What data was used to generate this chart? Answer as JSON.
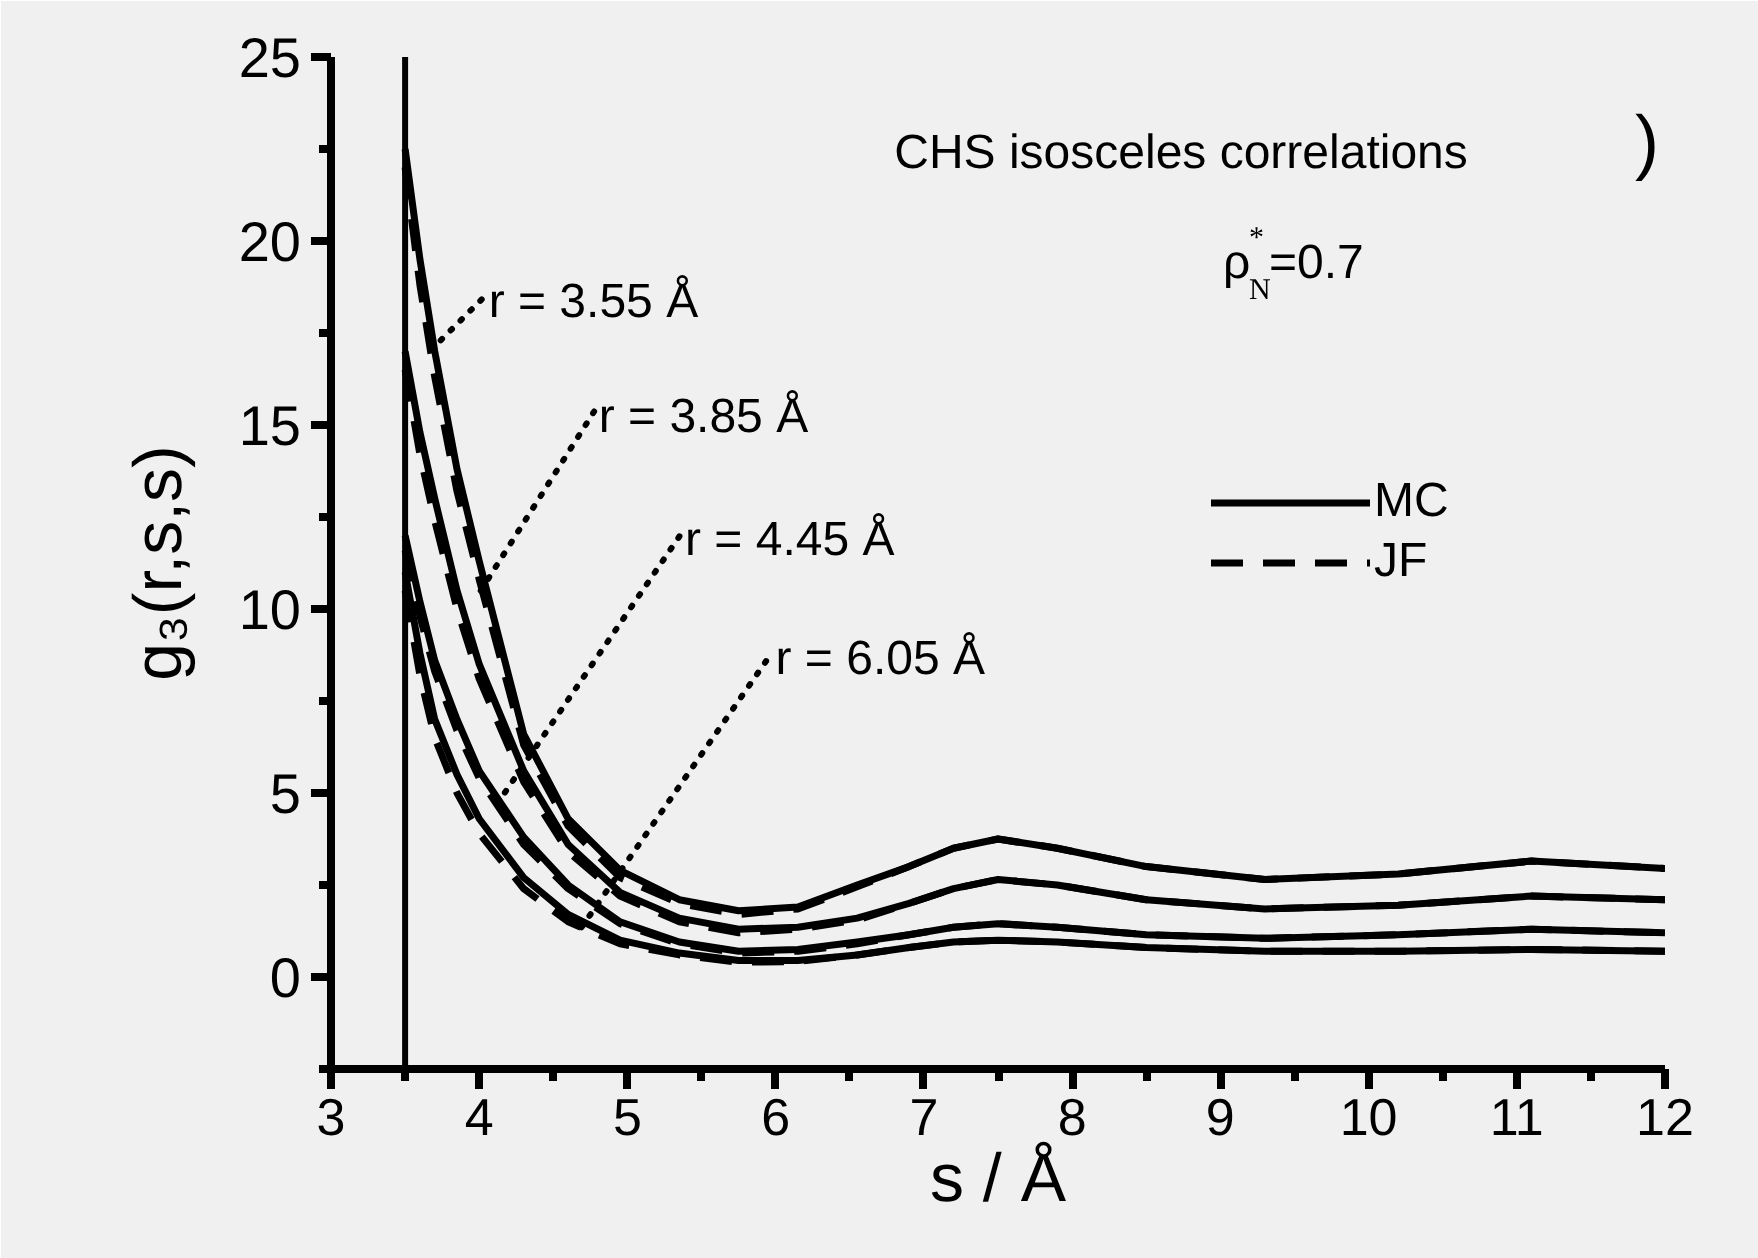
{
  "chart_data": {
    "type": "line",
    "xlabel": "s / Å",
    "ylabel": "g₃(r,s,s)",
    "xlim": [
      3,
      12
    ],
    "ylim": [
      -2.5,
      25
    ],
    "xticks": [
      3,
      4,
      5,
      6,
      7,
      8,
      9,
      10,
      11,
      12
    ],
    "yticks": [
      0,
      5,
      10,
      15,
      20,
      25
    ],
    "grid": false,
    "legend": "top right",
    "marker": "none",
    "x": [
      3.5,
      3.6,
      3.7,
      3.85,
      4.0,
      4.3,
      4.6,
      4.95,
      5.35,
      5.75,
      6.15,
      6.55,
      6.9,
      7.2,
      7.5,
      7.9,
      8.5,
      9.3,
      10.2,
      11.1,
      12.0
    ],
    "series": [
      {
        "name": "MC",
        "color": "#000000",
        "line_style": "solid",
        "values": [
          22.5,
          19.5,
          17.0,
          13.8,
          11.3,
          6.6,
          4.3,
          2.9,
          2.1,
          1.8,
          1.9,
          2.5,
          3.0,
          3.5,
          3.75,
          3.5,
          3.0,
          2.65,
          2.8,
          3.15,
          2.95
        ]
      },
      {
        "name": "JF",
        "color": "#000000",
        "line_style": "dashed",
        "values": [
          22.0,
          18.8,
          16.3,
          13.2,
          10.8,
          6.3,
          4.1,
          2.7,
          2.0,
          1.7,
          1.85,
          2.45,
          3.0,
          3.5,
          3.75,
          3.5,
          3.0,
          2.65,
          2.8,
          3.15,
          2.95
        ]
      },
      {
        "color": "#000000",
        "line_style": "solid",
        "values": [
          17.0,
          14.8,
          13.0,
          10.5,
          8.5,
          5.6,
          3.6,
          2.3,
          1.6,
          1.3,
          1.35,
          1.6,
          2.0,
          2.4,
          2.65,
          2.5,
          2.1,
          1.85,
          1.95,
          2.2,
          2.1
        ]
      },
      {
        "color": "#000000",
        "line_style": "dashed",
        "values": [
          16.5,
          14.2,
          12.4,
          10.0,
          8.1,
          5.3,
          3.4,
          2.2,
          1.5,
          1.2,
          1.3,
          1.55,
          2.0,
          2.4,
          2.65,
          2.5,
          2.1,
          1.85,
          1.95,
          2.2,
          2.1
        ]
      },
      {
        "color": "#000000",
        "line_style": "solid",
        "values": [
          12.0,
          10.2,
          8.6,
          7.0,
          5.6,
          3.8,
          2.5,
          1.5,
          0.95,
          0.7,
          0.75,
          0.95,
          1.15,
          1.35,
          1.45,
          1.35,
          1.15,
          1.05,
          1.15,
          1.3,
          1.2
        ]
      },
      {
        "color": "#000000",
        "line_style": "dashed",
        "values": [
          11.6,
          9.8,
          8.3,
          6.7,
          5.4,
          3.6,
          2.4,
          1.45,
          0.9,
          0.65,
          0.7,
          0.9,
          1.15,
          1.35,
          1.45,
          1.35,
          1.15,
          1.05,
          1.15,
          1.3,
          1.2
        ]
      },
      {
        "color": "#000000",
        "line_style": "solid",
        "values": [
          11.0,
          8.8,
          7.0,
          5.5,
          4.3,
          2.7,
          1.7,
          1.0,
          0.65,
          0.45,
          0.45,
          0.6,
          0.8,
          0.95,
          1.0,
          0.95,
          0.8,
          0.7,
          0.7,
          0.75,
          0.7
        ]
      },
      {
        "color": "#000000",
        "line_style": "dashed",
        "values": [
          10.5,
          8.2,
          6.5,
          5.0,
          3.9,
          2.4,
          1.5,
          0.9,
          0.6,
          0.4,
          0.42,
          0.6,
          0.8,
          0.95,
          1.0,
          0.95,
          0.8,
          0.7,
          0.7,
          0.75,
          0.7
        ]
      }
    ],
    "ref_lines": [
      {
        "axis": "x",
        "value": 3.5,
        "color": "#000000",
        "line_style": "solid"
      }
    ],
    "annotations": [
      {
        "text": "r = 3.55 Å",
        "x": 3.74,
        "y": 17.3
      },
      {
        "text": "r = 3.85 Å",
        "x": 4.01,
        "y": 10.5
      },
      {
        "text": "r = 4.45 Å",
        "x": 4.12,
        "y": 4.7
      },
      {
        "text": "r = 6.05 Å",
        "x": 4.69,
        "y": 1.35
      },
      "CHS isosceles correlations",
      "ρ$^{*}$$_{N}$=0.7",
      ")"
    ]
  }
}
